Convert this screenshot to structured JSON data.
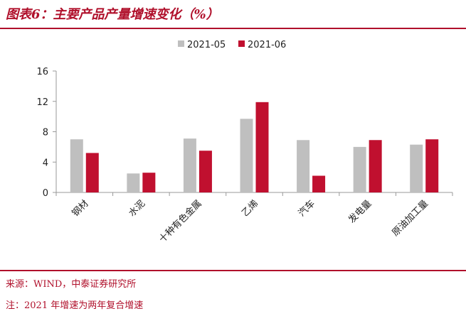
{
  "header": {
    "title": "图表6：主要产品产量增速变化（%）"
  },
  "footer": {
    "source": "来源：WIND，中泰证券研究所",
    "note": "注：2021 年增速为两年复合增速"
  },
  "chart_data": {
    "type": "bar",
    "categories": [
      "钢材",
      "水泥",
      "十种有色金属",
      "乙烯",
      "汽车",
      "发电量",
      "原油加工量"
    ],
    "series": [
      {
        "name": "2021-05",
        "color": "#bfbfbf",
        "values": [
          7.0,
          2.5,
          7.1,
          9.7,
          6.9,
          6.0,
          6.3
        ]
      },
      {
        "name": "2021-06",
        "color": "#c0102f",
        "values": [
          5.2,
          2.6,
          5.5,
          11.9,
          2.2,
          6.9,
          7.0
        ]
      }
    ],
    "yticks": [
      0,
      4,
      8,
      12,
      16
    ],
    "ylim": [
      0,
      16
    ],
    "legend_position": "top-center",
    "grid": false
  }
}
